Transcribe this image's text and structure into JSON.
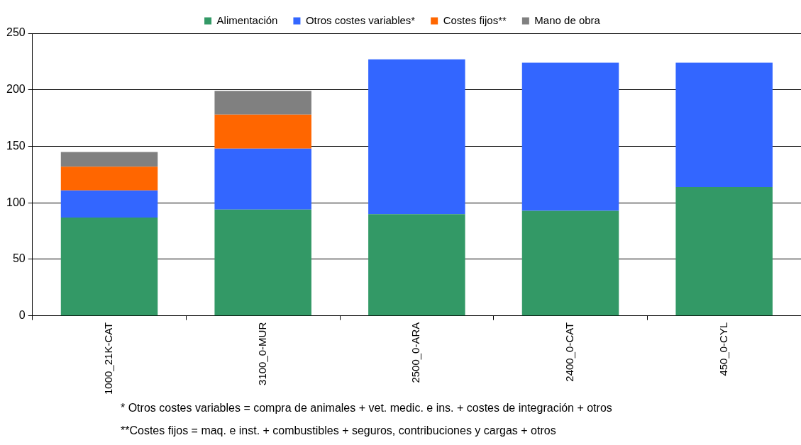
{
  "chart_data": {
    "type": "bar",
    "stacked": true,
    "categories": [
      "1000_21K-CAT",
      "3100_0-MUR",
      "2500_0-ARA",
      "2400_0-CAT",
      "450_0-CYL"
    ],
    "series": [
      {
        "name": "Alimentación",
        "color": "#339966",
        "values": [
          87,
          94,
          90,
          93,
          114
        ]
      },
      {
        "name": "Otros costes variables*",
        "color": "#3366ff",
        "values": [
          24,
          54,
          137,
          131,
          110
        ]
      },
      {
        "name": "Costes fijos**",
        "color": "#ff6600",
        "values": [
          21,
          30,
          0,
          0,
          0
        ]
      },
      {
        "name": "Mano de obra",
        "color": "#808080",
        "values": [
          13,
          21,
          0,
          0,
          0
        ]
      }
    ],
    "ylim": [
      0,
      250
    ],
    "yticks": [
      0,
      50,
      100,
      150,
      200,
      250
    ],
    "grid": "y",
    "legend": "top",
    "annotations": [
      "* Otros costes variables = compra de animales + vet. medic. e ins. + costes de integración + otros",
      "**Costes fijos = maq. e inst. + combustibles + seguros, contribuciones y cargas + otros"
    ]
  }
}
